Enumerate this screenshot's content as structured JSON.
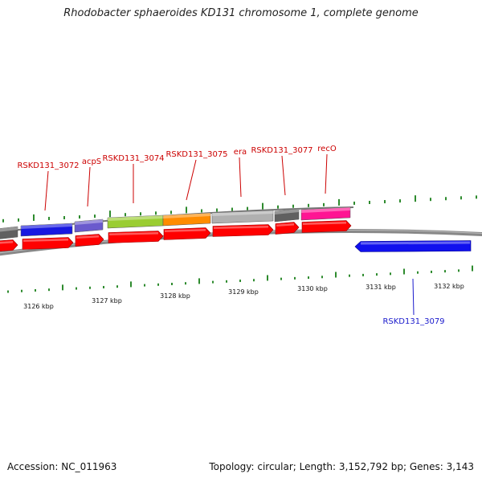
{
  "title": "Rhodobacter sphaeroides KD131 chromosome 1, complete genome",
  "footer": {
    "accession": "Accession: NC_011963",
    "summary": "Topology: circular; Length: 3,152,792 bp; Genes: 3,143"
  },
  "colors": {
    "cds_arrow": "#ff0000",
    "minus_gene": "#1010ee",
    "backbone": "#888888",
    "tick": "#2e8b2e",
    "plus_label": "#cc0000",
    "minus_label": "#1a1acc"
  },
  "kbp_labels": [
    "3126 kbp",
    "3127 kbp",
    "3128 kbp",
    "3129 kbp",
    "3130 kbp",
    "3131 kbp",
    "3132 kbp"
  ],
  "plus_genes": [
    {
      "label": "RSKD131_3072",
      "color": "#1818e0"
    },
    {
      "label": "acpS",
      "color": "#6a5acd"
    },
    {
      "label": "RSKD131_3074",
      "color": "#9acd32"
    },
    {
      "label": "RSKD131_3075",
      "color": "#ff8c00"
    },
    {
      "label": "era",
      "color": "#b0b0b0"
    },
    {
      "label": "RSKD131_3077",
      "color": "#606060"
    },
    {
      "label": "recO",
      "color": "#ff1493"
    }
  ],
  "minus_genes": [
    {
      "label": "RSKD131_3079",
      "color": "#1010ee"
    }
  ]
}
